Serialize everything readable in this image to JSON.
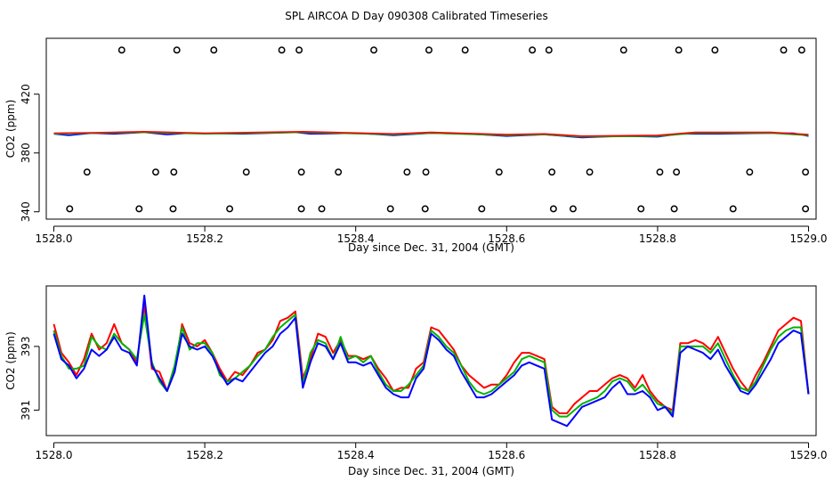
{
  "figure_title": "SPL AIRCOA D  Day 090308  Calibrated Timeseries",
  "colors": {
    "red": "#ff0000",
    "green": "#00b400",
    "blue": "#0000ff",
    "axis": "#000000",
    "background": "#ffffff"
  },
  "chart_data": [
    {
      "type": "line",
      "id": "top",
      "title": "",
      "xlabel": "Day since Dec. 31, 2004 (GMT)",
      "ylabel": "CO2 (ppm)",
      "xlim": [
        1527.99,
        1529.01
      ],
      "ylim": [
        335,
        458
      ],
      "x_ticks": [
        1528.0,
        1528.2,
        1528.4,
        1528.6,
        1528.8,
        1529.0
      ],
      "x_tick_labels": [
        "1528.0",
        "1528.2",
        "1528.4",
        "1528.6",
        "1528.8",
        "1529.0"
      ],
      "y_ticks": [
        340,
        380,
        420
      ],
      "y_tick_labels": [
        "340",
        "380",
        "420"
      ],
      "grid": false,
      "line_series": [
        {
          "name": "blue",
          "color": "blue",
          "x": [
            1528.0,
            1528.02,
            1528.05,
            1528.08,
            1528.12,
            1528.15,
            1528.18,
            1528.25,
            1528.32,
            1528.34,
            1528.4,
            1528.45,
            1528.5,
            1528.55,
            1528.6,
            1528.65,
            1528.7,
            1528.75,
            1528.8,
            1528.83,
            1528.88,
            1528.95,
            1528.98,
            1529.0
          ],
          "y": [
            393,
            392,
            393.5,
            393,
            394,
            392.5,
            393.5,
            393,
            394,
            393,
            393.5,
            392,
            393.5,
            393,
            391.5,
            392.5,
            390.5,
            391.5,
            391,
            393,
            393,
            393.5,
            393.5,
            391.5
          ]
        },
        {
          "name": "green",
          "color": "green",
          "x": [
            1528.0,
            1528.05,
            1528.12,
            1528.2,
            1528.33,
            1528.45,
            1528.5,
            1528.6,
            1528.65,
            1528.7,
            1528.8,
            1528.85,
            1528.95,
            1529.0
          ],
          "y": [
            393,
            393.5,
            394,
            393,
            394,
            392.5,
            393.5,
            392,
            392.5,
            391,
            391.5,
            393.5,
            393.5,
            392
          ]
        },
        {
          "name": "red",
          "color": "red",
          "x": [
            1528.0,
            1528.05,
            1528.12,
            1528.2,
            1528.33,
            1528.45,
            1528.5,
            1528.6,
            1528.65,
            1528.7,
            1528.8,
            1528.85,
            1528.95,
            1529.0
          ],
          "y": [
            393.5,
            393.8,
            394.5,
            393.5,
            394.5,
            393,
            394,
            392.5,
            393,
            391.5,
            392,
            394,
            394,
            392.5
          ]
        }
      ],
      "point_series": [
        {
          "name": "markers-high",
          "x": [
            1528.09,
            1528.163,
            1528.212,
            1528.302,
            1528.325,
            1528.424,
            1528.497,
            1528.545,
            1528.634,
            1528.656,
            1528.755,
            1528.828,
            1528.876,
            1528.967,
            1528.991
          ],
          "y": [
            450,
            450,
            450,
            450,
            450,
            450,
            450,
            450,
            450,
            450,
            450,
            450,
            450,
            450,
            450
          ]
        },
        {
          "name": "markers-mid",
          "x": [
            1528.044,
            1528.135,
            1528.159,
            1528.255,
            1528.328,
            1528.377,
            1528.468,
            1528.493,
            1528.59,
            1528.66,
            1528.71,
            1528.803,
            1528.825,
            1528.922,
            1528.996
          ],
          "y": [
            367,
            367,
            367,
            367,
            367,
            367,
            367,
            367,
            367,
            367,
            367,
            367,
            367,
            367,
            367
          ]
        },
        {
          "name": "markers-low",
          "x": [
            1528.021,
            1528.113,
            1528.158,
            1528.233,
            1528.328,
            1528.355,
            1528.446,
            1528.492,
            1528.567,
            1528.662,
            1528.688,
            1528.778,
            1528.822,
            1528.9,
            1528.996
          ],
          "y": [
            342,
            342,
            342,
            342,
            342,
            342,
            342,
            342,
            342,
            342,
            342,
            342,
            342,
            342,
            342
          ]
        }
      ]
    },
    {
      "type": "line",
      "id": "bottom",
      "title": "",
      "xlabel": "Day since Dec. 31, 2004 (GMT)",
      "ylabel": "CO2 (ppm)",
      "xlim": [
        1527.99,
        1529.01
      ],
      "ylim": [
        390.2,
        394.9
      ],
      "x_ticks": [
        1528.0,
        1528.2,
        1528.4,
        1528.6,
        1528.8,
        1529.0
      ],
      "x_tick_labels": [
        "1528.0",
        "1528.2",
        "1528.4",
        "1528.6",
        "1528.8",
        "1529.0"
      ],
      "y_ticks": [
        391,
        393
      ],
      "y_tick_labels": [
        "391",
        "393"
      ],
      "grid": false,
      "x": [
        1528.0,
        1528.01,
        1528.02,
        1528.03,
        1528.04,
        1528.05,
        1528.06,
        1528.07,
        1528.08,
        1528.09,
        1528.1,
        1528.11,
        1528.12,
        1528.13,
        1528.14,
        1528.15,
        1528.16,
        1528.17,
        1528.18,
        1528.19,
        1528.2,
        1528.21,
        1528.22,
        1528.23,
        1528.24,
        1528.25,
        1528.26,
        1528.27,
        1528.28,
        1528.29,
        1528.3,
        1528.31,
        1528.32,
        1528.33,
        1528.34,
        1528.35,
        1528.36,
        1528.37,
        1528.38,
        1528.39,
        1528.4,
        1528.41,
        1528.42,
        1528.43,
        1528.44,
        1528.45,
        1528.46,
        1528.47,
        1528.48,
        1528.49,
        1528.5,
        1528.51,
        1528.52,
        1528.53,
        1528.54,
        1528.55,
        1528.56,
        1528.57,
        1528.58,
        1528.59,
        1528.6,
        1528.61,
        1528.62,
        1528.63,
        1528.64,
        1528.65,
        1528.66,
        1528.67,
        1528.68,
        1528.69,
        1528.7,
        1528.71,
        1528.72,
        1528.73,
        1528.74,
        1528.75,
        1528.76,
        1528.77,
        1528.78,
        1528.79,
        1528.8,
        1528.81,
        1528.82,
        1528.83,
        1528.84,
        1528.85,
        1528.86,
        1528.87,
        1528.88,
        1528.89,
        1528.9,
        1528.91,
        1528.92,
        1528.93,
        1528.94,
        1528.95,
        1528.96,
        1528.97,
        1528.98,
        1528.99,
        1529.0
      ],
      "series": [
        {
          "name": "red",
          "color": "red",
          "values": [
            393.7,
            392.8,
            392.5,
            392.1,
            392.6,
            393.4,
            392.9,
            393.1,
            393.7,
            393.1,
            392.9,
            392.5,
            394.3,
            392.3,
            392.2,
            391.6,
            392.2,
            393.7,
            393.1,
            393.0,
            393.2,
            392.8,
            392.3,
            391.9,
            392.2,
            392.1,
            392.4,
            392.8,
            392.9,
            393.2,
            393.8,
            393.9,
            394.1,
            392.0,
            392.6,
            393.4,
            393.3,
            392.8,
            393.2,
            392.7,
            392.7,
            392.6,
            392.7,
            392.3,
            392.0,
            391.6,
            391.7,
            391.7,
            392.3,
            392.5,
            393.6,
            393.5,
            393.2,
            392.9,
            392.4,
            392.1,
            391.9,
            391.7,
            391.8,
            391.8,
            392.1,
            392.5,
            392.8,
            392.8,
            392.7,
            392.6,
            391.1,
            390.9,
            390.9,
            391.2,
            391.4,
            391.6,
            391.6,
            391.8,
            392.0,
            392.1,
            392.0,
            391.7,
            392.1,
            391.6,
            391.3,
            391.1,
            391.0,
            393.1,
            393.1,
            393.2,
            393.1,
            392.9,
            393.3,
            392.8,
            392.3,
            391.9,
            391.6,
            392.1,
            392.5,
            393.0,
            393.5,
            393.7,
            393.9,
            393.8,
            391.5
          ]
        },
        {
          "name": "green",
          "color": "green",
          "values": [
            393.5,
            392.7,
            392.3,
            392.3,
            392.4,
            393.3,
            393.0,
            392.9,
            393.4,
            393.1,
            392.9,
            392.6,
            394.0,
            392.5,
            391.9,
            391.6,
            392.4,
            393.6,
            392.9,
            393.1,
            393.1,
            392.8,
            392.1,
            391.9,
            392.0,
            392.2,
            392.4,
            392.7,
            392.9,
            393.3,
            393.6,
            393.8,
            394.0,
            391.8,
            392.8,
            393.2,
            393.1,
            392.6,
            393.3,
            392.6,
            392.7,
            392.5,
            392.7,
            392.2,
            391.8,
            391.6,
            391.6,
            391.8,
            392.1,
            392.4,
            393.5,
            393.3,
            393.0,
            392.8,
            392.4,
            391.9,
            391.6,
            391.5,
            391.6,
            391.8,
            392.0,
            392.2,
            392.6,
            392.7,
            392.6,
            392.5,
            391.0,
            390.8,
            390.8,
            391.0,
            391.2,
            391.3,
            391.4,
            391.6,
            391.9,
            392.0,
            391.9,
            391.6,
            391.8,
            391.5,
            391.2,
            391.1,
            390.9,
            393.0,
            393.0,
            393.0,
            393.0,
            392.8,
            393.1,
            392.6,
            392.1,
            391.7,
            391.6,
            391.9,
            392.4,
            392.9,
            393.3,
            393.5,
            393.6,
            393.6,
            391.5
          ]
        },
        {
          "name": "blue",
          "color": "blue",
          "values": [
            393.4,
            392.6,
            392.4,
            392.0,
            392.3,
            392.9,
            392.7,
            392.9,
            393.3,
            392.9,
            392.8,
            392.4,
            394.6,
            392.4,
            392.0,
            391.6,
            392.2,
            393.4,
            393.0,
            392.9,
            393.0,
            392.7,
            392.2,
            391.8,
            392.0,
            391.9,
            392.2,
            392.5,
            392.8,
            393.0,
            393.4,
            393.6,
            393.9,
            391.7,
            392.5,
            393.1,
            393.0,
            392.6,
            393.1,
            392.5,
            392.5,
            392.4,
            392.5,
            392.1,
            391.7,
            391.5,
            391.4,
            391.4,
            392.0,
            392.3,
            393.4,
            393.2,
            392.9,
            392.7,
            392.2,
            391.8,
            391.4,
            391.4,
            391.5,
            391.7,
            391.9,
            392.1,
            392.4,
            392.5,
            392.4,
            392.3,
            390.7,
            390.6,
            390.5,
            390.8,
            391.1,
            391.2,
            391.3,
            391.4,
            391.7,
            391.9,
            391.5,
            391.5,
            391.6,
            391.4,
            391.0,
            391.1,
            390.8,
            392.8,
            393.0,
            392.9,
            392.8,
            392.6,
            392.9,
            392.4,
            392.0,
            391.6,
            391.5,
            391.8,
            392.2,
            392.6,
            393.1,
            393.3,
            393.5,
            393.4,
            391.5
          ]
        }
      ]
    }
  ]
}
